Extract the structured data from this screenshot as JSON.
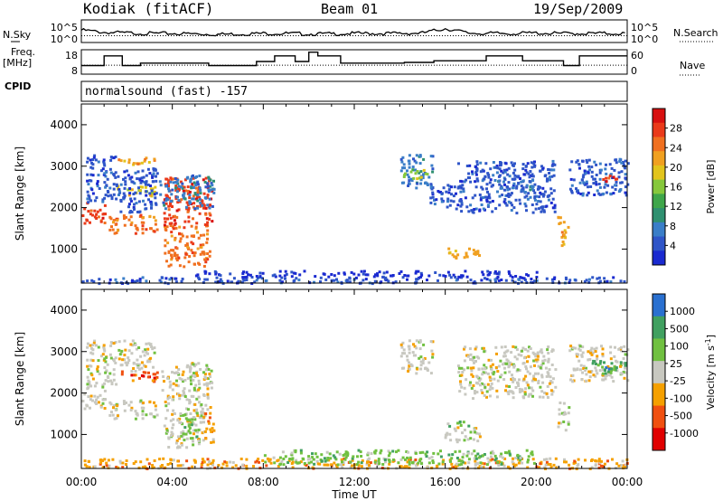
{
  "header": {
    "station": "Kodiak (fitACF)",
    "beam": "Beam 01",
    "date": "19/Sep/2009"
  },
  "side_labels": {
    "nsky": "N.Sky",
    "freq": "Freq.",
    "freq_unit": "[MHz]",
    "cpid": "CPID",
    "nsearch": "N.Search",
    "nave": "Nave"
  },
  "cpid_text": "normalsound (fast) -157",
  "colors": {
    "power": [
      "#1a2ad0",
      "#2f55c8",
      "#3a7ec8",
      "#2f9070",
      "#3ea64a",
      "#86c83c",
      "#e2c41c",
      "#f0a020",
      "#f07020",
      "#ea3a1a",
      "#d81010"
    ],
    "velocity": [
      "#e00000",
      "#f05010",
      "#f5a000",
      "#c8c8c0",
      "#70c040",
      "#40a060",
      "#2a70d0"
    ],
    "ground_scatter": "#c8c8c0"
  },
  "chart_data": [
    {
      "type": "line",
      "name": "noise",
      "yticks_left": [
        "10^5",
        "10^0"
      ],
      "yticks_right": [
        "10^5",
        "10^0"
      ],
      "x": [
        0,
        1,
        2,
        3,
        4,
        5,
        6,
        7,
        8,
        9,
        10,
        11,
        12,
        13,
        14,
        15,
        16,
        17,
        18,
        19,
        20,
        21,
        22,
        23,
        24
      ],
      "series": [
        {
          "name": "N.Sky",
          "values": [
            0.55,
            0.45,
            0.42,
            0.4,
            0.4,
            0.38,
            0.36,
            0.38,
            0.4,
            0.4,
            0.38,
            0.38,
            0.4,
            0.4,
            0.4,
            0.42,
            0.62,
            0.42,
            0.4,
            0.4,
            0.42,
            0.4,
            0.4,
            0.4,
            0.4
          ]
        }
      ]
    },
    {
      "type": "line",
      "name": "frequency",
      "yticks_left": [
        "18",
        "8"
      ],
      "yticks_right": [
        "60",
        "0"
      ],
      "series": [
        {
          "name": "Freq.",
          "points": [
            [
              0,
              11.5
            ],
            [
              1,
              11.5
            ],
            [
              1,
              15.5
            ],
            [
              1.8,
              15.5
            ],
            [
              1.8,
              11.5
            ],
            [
              2.6,
              11.5
            ],
            [
              2.6,
              12.5
            ],
            [
              5.6,
              12.5
            ],
            [
              5.6,
              11.5
            ],
            [
              7.7,
              11.5
            ],
            [
              7.7,
              13.2
            ],
            [
              8.5,
              13.2
            ],
            [
              8.5,
              15.5
            ],
            [
              9.4,
              15.5
            ],
            [
              9.4,
              13.2
            ],
            [
              10,
              13.2
            ],
            [
              10,
              17
            ],
            [
              10.4,
              17
            ],
            [
              10.4,
              15.5
            ],
            [
              11.4,
              15.5
            ],
            [
              11.4,
              12.5
            ],
            [
              14.2,
              12.5
            ],
            [
              14.2,
              12.8
            ],
            [
              15.5,
              12.8
            ],
            [
              15.5,
              13.5
            ],
            [
              17.8,
              13.5
            ],
            [
              17.8,
              15.5
            ],
            [
              19.4,
              15.5
            ],
            [
              19.4,
              13.5
            ],
            [
              21.2,
              13.5
            ],
            [
              21.2,
              11.5
            ],
            [
              21.9,
              11.5
            ],
            [
              21.9,
              15.5
            ],
            [
              24,
              15.5
            ]
          ]
        },
        {
          "name": "Nave",
          "values": [
            22,
            22,
            22,
            22,
            22,
            22,
            22,
            22,
            22,
            22,
            22,
            22,
            22,
            22,
            22,
            22,
            22,
            22,
            22,
            22,
            22,
            22,
            22,
            22,
            22
          ]
        }
      ]
    },
    {
      "type": "heatmap",
      "name": "power",
      "ylabel": "Slant Range [km]",
      "xlim": [
        0,
        24
      ],
      "ylim": [
        180,
        4500
      ],
      "yticks": [
        1000,
        2000,
        3000,
        4000
      ],
      "colorbar": {
        "label": "Power [dB]",
        "ticks": [
          4,
          8,
          12,
          16,
          20,
          24,
          28
        ]
      },
      "regions": [
        {
          "t0": 0.0,
          "t1": 1.0,
          "r0": 1650,
          "r1": 2150,
          "level": 9
        },
        {
          "t0": 0.2,
          "t1": 1.5,
          "r0": 2150,
          "r1": 3300,
          "level": 1
        },
        {
          "t0": 1.2,
          "t1": 3.3,
          "r0": 1400,
          "r1": 1850,
          "level": 8
        },
        {
          "t0": 1.3,
          "t1": 3.2,
          "r0": 2300,
          "r1": 2550,
          "level": 6
        },
        {
          "t0": 1.6,
          "t1": 3.2,
          "r0": 3050,
          "r1": 3250,
          "level": 7
        },
        {
          "t0": 1.5,
          "t1": 3.3,
          "r0": 1900,
          "r1": 3000,
          "level": 1
        },
        {
          "t0": 3.6,
          "t1": 5.6,
          "r0": 600,
          "r1": 1600,
          "level": 8
        },
        {
          "t0": 3.5,
          "t1": 5.7,
          "r0": 1600,
          "r1": 2750,
          "level": 9
        },
        {
          "t0": 3.4,
          "t1": 5.8,
          "r0": 2000,
          "r1": 2800,
          "level": 2
        },
        {
          "t0": 14.0,
          "t1": 15.4,
          "r0": 2500,
          "r1": 3300,
          "level": 2
        },
        {
          "t0": 14.1,
          "t1": 15.2,
          "r0": 2700,
          "r1": 2950,
          "level": 5
        },
        {
          "t0": 15.3,
          "t1": 16.7,
          "r0": 2000,
          "r1": 2600,
          "level": 1
        },
        {
          "t0": 15.9,
          "t1": 17.5,
          "r0": 800,
          "r1": 1050,
          "level": 7
        },
        {
          "t0": 16.5,
          "t1": 20.8,
          "r0": 1900,
          "r1": 3150,
          "level": 1
        },
        {
          "t0": 18.2,
          "t1": 19.9,
          "r0": 2400,
          "r1": 2700,
          "level": 2
        },
        {
          "t0": 20.9,
          "t1": 21.4,
          "r0": 1100,
          "r1": 1800,
          "level": 7
        },
        {
          "t0": 21.4,
          "t1": 24.0,
          "r0": 2300,
          "r1": 3200,
          "level": 1
        },
        {
          "t0": 22.9,
          "t1": 23.5,
          "r0": 2550,
          "r1": 2800,
          "level": 9
        },
        {
          "t0": 0.0,
          "t1": 24.0,
          "r0": 200,
          "r1": 350,
          "level": 1
        },
        {
          "t0": 5.0,
          "t1": 20.0,
          "r0": 350,
          "r1": 500,
          "level": 0
        }
      ]
    },
    {
      "type": "heatmap",
      "name": "velocity",
      "ylabel": "Slant Range [km]",
      "xlabel": "Time UT",
      "xlim": [
        0,
        24
      ],
      "ylim": [
        180,
        4500
      ],
      "xticks": [
        "00:00",
        "04:00",
        "08:00",
        "12:00",
        "16:00",
        "20:00",
        "00:00"
      ],
      "yticks": [
        1000,
        2000,
        3000,
        4000
      ],
      "colorbar": {
        "label": "Velocity [m s",
        "label_sup": "-1",
        "label_end": "]",
        "ticks": [
          1000,
          500,
          100,
          25,
          -25,
          -100,
          -500,
          -1000
        ]
      },
      "regions": [
        {
          "t0": 0.0,
          "t1": 1.0,
          "r0": 1650,
          "r1": 2150,
          "level": 3
        },
        {
          "t0": 0.2,
          "t1": 1.5,
          "r0": 2150,
          "r1": 3300,
          "level": 3
        },
        {
          "t0": 1.2,
          "t1": 3.3,
          "r0": 1400,
          "r1": 1850,
          "level": 3
        },
        {
          "t0": 1.5,
          "t1": 3.3,
          "r0": 2300,
          "r1": 2550,
          "level": 1
        },
        {
          "t0": 1.6,
          "t1": 3.2,
          "r0": 2550,
          "r1": 3300,
          "level": 3
        },
        {
          "t0": 3.6,
          "t1": 5.4,
          "r0": 700,
          "r1": 1600,
          "level": 3
        },
        {
          "t0": 4.3,
          "t1": 5.1,
          "r0": 900,
          "r1": 1550,
          "level": 4
        },
        {
          "t0": 5.3,
          "t1": 5.8,
          "r0": 800,
          "r1": 1550,
          "level": 2
        },
        {
          "t0": 3.5,
          "t1": 5.7,
          "r0": 1600,
          "r1": 2750,
          "level": 3
        },
        {
          "t0": 14.0,
          "t1": 15.4,
          "r0": 2500,
          "r1": 3300,
          "level": 3
        },
        {
          "t0": 15.9,
          "t1": 17.5,
          "r0": 850,
          "r1": 1200,
          "level": 3
        },
        {
          "t0": 16.0,
          "t1": 17.0,
          "r0": 1200,
          "r1": 1350,
          "level": 4
        },
        {
          "t0": 16.5,
          "t1": 20.8,
          "r0": 1900,
          "r1": 3150,
          "level": 3
        },
        {
          "t0": 20.9,
          "t1": 21.4,
          "r0": 1100,
          "r1": 1800,
          "level": 3
        },
        {
          "t0": 21.4,
          "t1": 24.0,
          "r0": 2300,
          "r1": 3200,
          "level": 3
        },
        {
          "t0": 22.4,
          "t1": 24.0,
          "r0": 2500,
          "r1": 2800,
          "level": 5
        },
        {
          "t0": 0.0,
          "t1": 24.0,
          "r0": 200,
          "r1": 450,
          "level": 2
        },
        {
          "t0": 8.0,
          "t1": 20.0,
          "r0": 300,
          "r1": 650,
          "level": 4
        }
      ]
    }
  ]
}
